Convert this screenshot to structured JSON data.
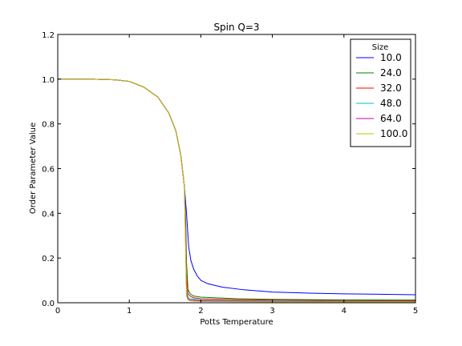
{
  "chart_data": {
    "type": "line",
    "title": "Spin Q=3",
    "xlabel": "Potts Temperature",
    "ylabel": "Order Parameter Value",
    "xlim": [
      0,
      5
    ],
    "ylim": [
      0,
      1.2
    ],
    "xticks": [
      "0",
      "1",
      "2",
      "3",
      "4",
      "5"
    ],
    "yticks": [
      "0.0",
      "0.2",
      "0.4",
      "0.6",
      "0.8",
      "1.0",
      "1.2"
    ],
    "grid": false,
    "legend": {
      "title": "Size",
      "placement": "top-right"
    },
    "series": [
      {
        "name": "10.0",
        "color": "#0000ff",
        "points": [
          [
            0,
            1.0
          ],
          [
            0.5,
            1.0
          ],
          [
            0.8,
            0.997
          ],
          [
            1.0,
            0.99
          ],
          [
            1.2,
            0.965
          ],
          [
            1.4,
            0.92
          ],
          [
            1.55,
            0.85
          ],
          [
            1.65,
            0.77
          ],
          [
            1.72,
            0.66
          ],
          [
            1.77,
            0.52
          ],
          [
            1.8,
            0.4
          ],
          [
            1.83,
            0.25
          ],
          [
            1.86,
            0.19
          ],
          [
            1.9,
            0.15
          ],
          [
            1.95,
            0.12
          ],
          [
            2.0,
            0.1
          ],
          [
            2.1,
            0.085
          ],
          [
            2.3,
            0.07
          ],
          [
            2.6,
            0.058
          ],
          [
            3.0,
            0.048
          ],
          [
            3.5,
            0.043
          ],
          [
            4.0,
            0.04
          ],
          [
            4.5,
            0.038
          ],
          [
            5.0,
            0.036
          ]
        ]
      },
      {
        "name": "24.0",
        "color": "#008000",
        "points": [
          [
            0,
            1.0
          ],
          [
            0.5,
            1.0
          ],
          [
            0.8,
            0.997
          ],
          [
            1.0,
            0.99
          ],
          [
            1.2,
            0.965
          ],
          [
            1.4,
            0.92
          ],
          [
            1.55,
            0.85
          ],
          [
            1.65,
            0.77
          ],
          [
            1.72,
            0.66
          ],
          [
            1.77,
            0.52
          ],
          [
            1.79,
            0.35
          ],
          [
            1.8,
            0.18
          ],
          [
            1.82,
            0.06
          ],
          [
            1.85,
            0.04
          ],
          [
            1.9,
            0.03
          ],
          [
            2.0,
            0.025
          ],
          [
            2.5,
            0.018
          ],
          [
            3.0,
            0.015
          ],
          [
            4.0,
            0.013
          ],
          [
            5.0,
            0.012
          ]
        ]
      },
      {
        "name": "32.0",
        "color": "#ff0000",
        "points": [
          [
            0,
            1.0
          ],
          [
            0.5,
            1.0
          ],
          [
            0.8,
            0.997
          ],
          [
            1.0,
            0.99
          ],
          [
            1.2,
            0.965
          ],
          [
            1.4,
            0.92
          ],
          [
            1.55,
            0.85
          ],
          [
            1.65,
            0.77
          ],
          [
            1.72,
            0.66
          ],
          [
            1.77,
            0.52
          ],
          [
            1.79,
            0.3
          ],
          [
            1.8,
            0.12
          ],
          [
            1.82,
            0.04
          ],
          [
            1.85,
            0.03
          ],
          [
            1.9,
            0.022
          ],
          [
            2.0,
            0.018
          ],
          [
            2.5,
            0.014
          ],
          [
            3.0,
            0.012
          ],
          [
            4.0,
            0.01
          ],
          [
            5.0,
            0.009
          ]
        ]
      },
      {
        "name": "48.0",
        "color": "#00bfbf",
        "points": [
          [
            0,
            1.0
          ],
          [
            0.5,
            1.0
          ],
          [
            0.8,
            0.997
          ],
          [
            1.0,
            0.99
          ],
          [
            1.2,
            0.965
          ],
          [
            1.4,
            0.92
          ],
          [
            1.55,
            0.85
          ],
          [
            1.65,
            0.77
          ],
          [
            1.72,
            0.66
          ],
          [
            1.77,
            0.52
          ],
          [
            1.79,
            0.25
          ],
          [
            1.8,
            0.06
          ],
          [
            1.82,
            0.025
          ],
          [
            1.85,
            0.018
          ],
          [
            2.0,
            0.012
          ],
          [
            2.5,
            0.009
          ],
          [
            3.0,
            0.008
          ],
          [
            4.0,
            0.007
          ],
          [
            5.0,
            0.006
          ]
        ]
      },
      {
        "name": "64.0",
        "color": "#bf00bf",
        "points": [
          [
            0,
            1.0
          ],
          [
            0.5,
            1.0
          ],
          [
            0.8,
            0.997
          ],
          [
            1.0,
            0.99
          ],
          [
            1.2,
            0.965
          ],
          [
            1.4,
            0.92
          ],
          [
            1.55,
            0.85
          ],
          [
            1.65,
            0.77
          ],
          [
            1.72,
            0.66
          ],
          [
            1.77,
            0.52
          ],
          [
            1.79,
            0.22
          ],
          [
            1.8,
            0.04
          ],
          [
            1.82,
            0.018
          ],
          [
            1.85,
            0.012
          ],
          [
            2.0,
            0.009
          ],
          [
            2.5,
            0.007
          ],
          [
            3.0,
            0.006
          ],
          [
            4.0,
            0.005
          ],
          [
            5.0,
            0.005
          ]
        ]
      },
      {
        "name": "100.0",
        "color": "#bfbf00",
        "points": [
          [
            0,
            1.0
          ],
          [
            0.5,
            1.0
          ],
          [
            0.8,
            0.997
          ],
          [
            1.0,
            0.99
          ],
          [
            1.2,
            0.965
          ],
          [
            1.4,
            0.92
          ],
          [
            1.55,
            0.85
          ],
          [
            1.65,
            0.77
          ],
          [
            1.72,
            0.66
          ],
          [
            1.77,
            0.52
          ],
          [
            1.79,
            0.2
          ],
          [
            1.8,
            0.03
          ],
          [
            1.82,
            0.012
          ],
          [
            1.85,
            0.008
          ],
          [
            2.0,
            0.006
          ],
          [
            2.5,
            0.005
          ],
          [
            3.0,
            0.004
          ],
          [
            4.0,
            0.004
          ],
          [
            5.0,
            0.004
          ]
        ]
      }
    ]
  }
}
